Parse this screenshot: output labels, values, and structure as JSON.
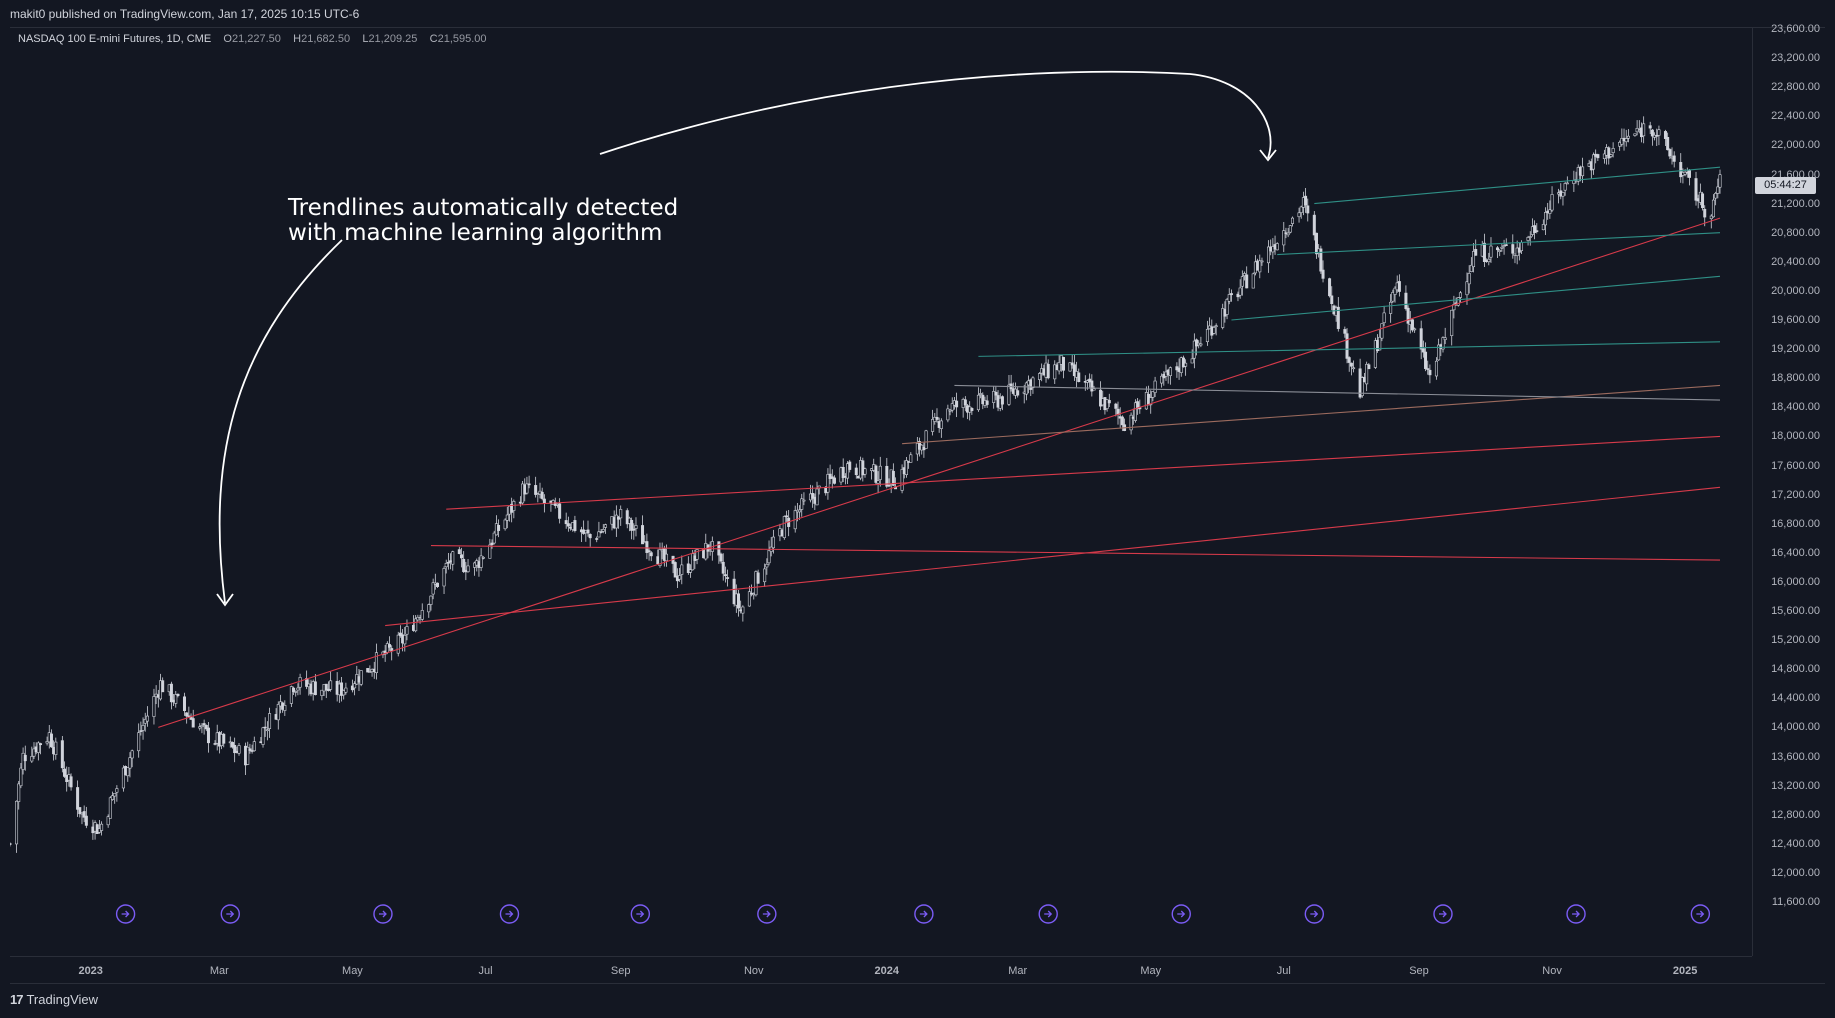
{
  "header": {
    "published_by": "makit0 published on TradingView.com, Jan 17, 2025 10:15 UTC-6"
  },
  "legend": {
    "symbol": "NASDAQ 100 E-mini Futures, 1D, CME",
    "open_label": "O",
    "open_value": "21,227.50",
    "high_label": "H",
    "high_value": "21,682.50",
    "low_label": "L",
    "low_value": "21,209.25",
    "close_label": "C",
    "close_value": "21,595.00"
  },
  "annotation": {
    "line1": "Trendlines automatically detected",
    "line2": "with machine learning algorithm"
  },
  "countdown": "05:44:27",
  "brand": {
    "logo": "17",
    "name": "TradingView"
  },
  "colors": {
    "background": "#131722",
    "candle": "#d1d4dc",
    "trend_red": "#d63a4a",
    "trend_teal": "#2f8f86",
    "trend_gray": "#8a8d96",
    "trend_brown": "#9c6b5e",
    "event_icon": "#7b5cf5"
  },
  "chart_data": {
    "type": "candlestick",
    "title": "NASDAQ 100 E-mini Futures, 1D, CME",
    "x_range": [
      "2022-11-25",
      "2025-01-17"
    ],
    "ylim": [
      11400,
      23700
    ],
    "y_ticks": [
      "23,600.00",
      "23,200.00",
      "22,800.00",
      "22,400.00",
      "22,000.00",
      "21,600.00",
      "21,200.00",
      "20,800.00",
      "20,400.00",
      "20,000.00",
      "19,600.00",
      "19,200.00",
      "18,800.00",
      "18,400.00",
      "18,000.00",
      "17,600.00",
      "17,200.00",
      "16,800.00",
      "16,400.00",
      "16,000.00",
      "15,600.00",
      "15,200.00",
      "14,800.00",
      "14,400.00",
      "14,000.00",
      "13,600.00",
      "13,200.00",
      "12,800.00",
      "12,400.00",
      "12,000.00",
      "11,600.00"
    ],
    "x_ticks": [
      {
        "label": "2023",
        "date": "2023-01-01"
      },
      {
        "label": "Mar",
        "date": "2023-03-01"
      },
      {
        "label": "May",
        "date": "2023-05-01"
      },
      {
        "label": "Jul",
        "date": "2023-07-01"
      },
      {
        "label": "Sep",
        "date": "2023-09-01"
      },
      {
        "label": "Nov",
        "date": "2023-11-01"
      },
      {
        "label": "2024",
        "date": "2024-01-01"
      },
      {
        "label": "Mar",
        "date": "2024-03-01"
      },
      {
        "label": "May",
        "date": "2024-05-01"
      },
      {
        "label": "Jul",
        "date": "2024-07-01"
      },
      {
        "label": "Sep",
        "date": "2024-09-01"
      },
      {
        "label": "Nov",
        "date": "2024-11-01"
      },
      {
        "label": "2025",
        "date": "2025-01-01"
      }
    ],
    "price_path": [
      [
        "2022-11-25",
        12400
      ],
      [
        "2022-12-01",
        13600
      ],
      [
        "2022-12-13",
        13900
      ],
      [
        "2022-12-28",
        12800
      ],
      [
        "2023-01-05",
        12600
      ],
      [
        "2023-02-02",
        14600
      ],
      [
        "2023-02-23",
        13900
      ],
      [
        "2023-03-13",
        13600
      ],
      [
        "2023-04-04",
        14600
      ],
      [
        "2023-04-25",
        14500
      ],
      [
        "2023-05-24",
        15200
      ],
      [
        "2023-06-15",
        16300
      ],
      [
        "2023-06-26",
        16200
      ],
      [
        "2023-07-19",
        17300
      ],
      [
        "2023-08-18",
        16600
      ],
      [
        "2023-09-01",
        16900
      ],
      [
        "2023-09-27",
        16100
      ],
      [
        "2023-10-12",
        16500
      ],
      [
        "2023-10-26",
        15600
      ],
      [
        "2023-11-15",
        16800
      ],
      [
        "2023-12-14",
        17600
      ],
      [
        "2024-01-05",
        17400
      ],
      [
        "2024-01-29",
        18400
      ],
      [
        "2024-02-21",
        18500
      ],
      [
        "2024-03-21",
        19000
      ],
      [
        "2024-04-19",
        18200
      ],
      [
        "2024-05-02",
        18600
      ],
      [
        "2024-05-21",
        19200
      ],
      [
        "2024-06-20",
        20400
      ],
      [
        "2024-07-10",
        21200
      ],
      [
        "2024-08-05",
        18600
      ],
      [
        "2024-08-22",
        20100
      ],
      [
        "2024-09-06",
        18800
      ],
      [
        "2024-09-26",
        20500
      ],
      [
        "2024-10-17",
        20600
      ],
      [
        "2024-11-11",
        21600
      ],
      [
        "2024-12-16",
        22300
      ],
      [
        "2025-01-13",
        21000
      ],
      [
        "2025-01-17",
        21595
      ]
    ],
    "trendlines": [
      {
        "color": "red",
        "from": [
          "2023-02-01",
          14000
        ],
        "to": [
          "2025-01-17",
          21000
        ]
      },
      {
        "color": "red",
        "from": [
          "2023-05-16",
          15400
        ],
        "to": [
          "2025-01-17",
          17300
        ]
      },
      {
        "color": "red",
        "from": [
          "2023-06-06",
          16500
        ],
        "to": [
          "2025-01-17",
          16300
        ]
      },
      {
        "color": "red",
        "from": [
          "2023-06-13",
          17000
        ],
        "to": [
          "2025-01-17",
          18000
        ]
      },
      {
        "color": "brown",
        "from": [
          "2024-01-08",
          17900
        ],
        "to": [
          "2025-01-17",
          18700
        ]
      },
      {
        "color": "gray",
        "from": [
          "2024-02-01",
          18700
        ],
        "to": [
          "2025-01-17",
          18500
        ]
      },
      {
        "color": "teal",
        "from": [
          "2024-02-12",
          19100
        ],
        "to": [
          "2025-01-17",
          19300
        ]
      },
      {
        "color": "teal",
        "from": [
          "2024-06-07",
          19600
        ],
        "to": [
          "2025-01-17",
          20200
        ]
      },
      {
        "color": "teal",
        "from": [
          "2024-06-28",
          20500
        ],
        "to": [
          "2025-01-17",
          20800
        ]
      },
      {
        "color": "teal",
        "from": [
          "2024-07-15",
          21200
        ],
        "to": [
          "2025-01-17",
          21700
        ]
      }
    ],
    "event_markers": [
      "2023-01-17",
      "2023-03-06",
      "2023-05-15",
      "2023-07-12",
      "2023-09-10",
      "2023-11-07",
      "2024-01-18",
      "2024-03-15",
      "2024-05-15",
      "2024-07-15",
      "2024-09-12",
      "2024-11-12",
      "2025-01-08"
    ]
  }
}
